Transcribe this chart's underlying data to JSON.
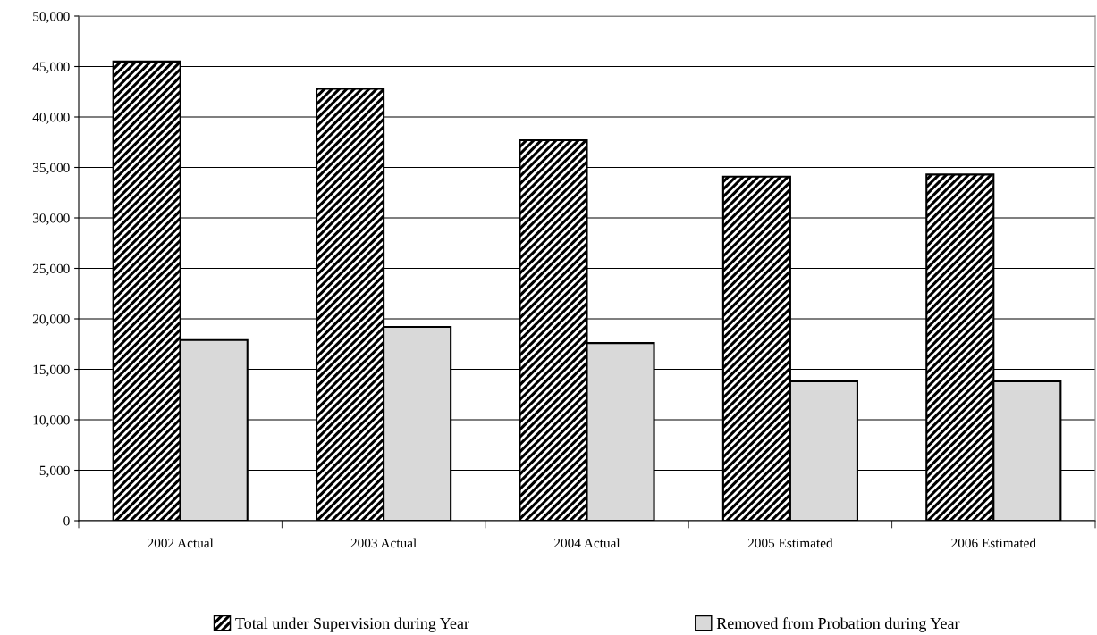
{
  "chart_data": {
    "type": "bar",
    "categories": [
      "2002 Actual",
      "2003 Actual",
      "2004 Actual",
      "2005 Estimated",
      "2006 Estimated"
    ],
    "series": [
      {
        "name": "Total under Supervision during Year",
        "color": "#000000",
        "values": [
          45500,
          42800,
          37700,
          34100,
          34300
        ]
      },
      {
        "name": "Removed from Probation during Year",
        "color": "#d9d9d9",
        "values": [
          17900,
          19200,
          17600,
          13800,
          13800
        ]
      }
    ],
    "ylim": [
      0,
      50000
    ],
    "yticks": [
      {
        "value": 0,
        "label": "0"
      },
      {
        "value": 5000,
        "label": "5,000"
      },
      {
        "value": 10000,
        "label": "10,000"
      },
      {
        "value": 15000,
        "label": "15,000"
      },
      {
        "value": 20000,
        "label": "20,000"
      },
      {
        "value": 25000,
        "label": "25,000"
      },
      {
        "value": 30000,
        "label": "30,000"
      },
      {
        "value": 35000,
        "label": "35,000"
      },
      {
        "value": 40000,
        "label": "40,000"
      },
      {
        "value": 45000,
        "label": "45,000"
      },
      {
        "value": 50000,
        "label": "50,000"
      }
    ],
    "grid": "y",
    "legend": "bottom"
  }
}
